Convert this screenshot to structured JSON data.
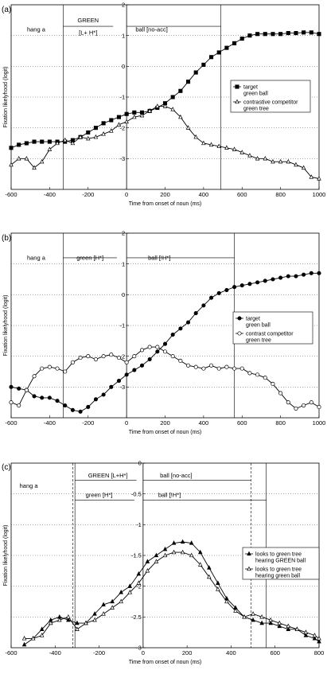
{
  "chart_data": [
    {
      "panel_label": "(a)",
      "type": "line",
      "xlabel": "Time from onset of noun (ms)",
      "ylabel": "Fixation likelyhood (logit)",
      "xlim": [
        -600,
        1000
      ],
      "ylim": [
        -4,
        2
      ],
      "xticks": [
        -600,
        -400,
        -200,
        0,
        200,
        400,
        600,
        800,
        1000
      ],
      "yticks": [
        2,
        1,
        0,
        -1,
        -2,
        -3
      ],
      "grid": "horizontal-dotted",
      "vlines": [
        {
          "x": -330,
          "style": "solid"
        },
        {
          "x": 490,
          "style": "solid"
        }
      ],
      "annotations": [
        {
          "text": "hang a",
          "x": -470,
          "y": 1.2
        },
        {
          "text": "GREEN",
          "x": -200,
          "y": 1.5
        },
        {
          "text": "[L+ H*]",
          "x": -200,
          "y": 1.1
        },
        {
          "text": "ball [no-acc]",
          "x": 130,
          "y": 1.2
        }
      ],
      "annotation_arrows": [
        {
          "x1": -330,
          "x2": -70,
          "y": 1.3
        },
        {
          "x1": 0,
          "x2": 490,
          "y": 1.3
        }
      ],
      "legend": {
        "placement": "right"
      },
      "series": [
        {
          "name": "target\ngreen ball",
          "marker": "square-filled",
          "x": [
            -600,
            -560,
            -520,
            -480,
            -440,
            -400,
            -360,
            -320,
            -280,
            -240,
            -200,
            -160,
            -120,
            -80,
            -40,
            0,
            40,
            80,
            120,
            160,
            200,
            240,
            280,
            320,
            360,
            400,
            440,
            480,
            520,
            560,
            600,
            640,
            680,
            720,
            760,
            800,
            840,
            880,
            920,
            960,
            1000
          ],
          "values": [
            -2.65,
            -2.55,
            -2.5,
            -2.45,
            -2.45,
            -2.45,
            -2.45,
            -2.45,
            -2.4,
            -2.3,
            -2.15,
            -2.0,
            -1.85,
            -1.75,
            -1.65,
            -1.55,
            -1.5,
            -1.5,
            -1.45,
            -1.35,
            -1.2,
            -1.0,
            -0.8,
            -0.5,
            -0.2,
            0.05,
            0.3,
            0.45,
            0.6,
            0.75,
            0.9,
            1.0,
            1.05,
            1.05,
            1.05,
            1.05,
            1.08,
            1.08,
            1.1,
            1.1,
            1.05
          ]
        },
        {
          "name": "contrastive competitor\ngreen tree",
          "marker": "triangle-open",
          "x": [
            -600,
            -560,
            -520,
            -480,
            -440,
            -400,
            -360,
            -320,
            -280,
            -240,
            -200,
            -160,
            -120,
            -80,
            -40,
            0,
            40,
            80,
            120,
            160,
            200,
            240,
            280,
            320,
            360,
            400,
            440,
            480,
            520,
            560,
            600,
            640,
            680,
            720,
            760,
            800,
            840,
            880,
            920,
            960,
            1000
          ],
          "values": [
            -3.2,
            -3.0,
            -3.0,
            -3.3,
            -3.1,
            -2.7,
            -2.5,
            -2.4,
            -2.5,
            -2.3,
            -2.35,
            -2.3,
            -2.2,
            -2.1,
            -1.9,
            -1.8,
            -1.65,
            -1.6,
            -1.45,
            -1.3,
            -1.3,
            -1.4,
            -1.65,
            -2.0,
            -2.3,
            -2.5,
            -2.55,
            -2.6,
            -2.65,
            -2.7,
            -2.8,
            -2.9,
            -3.0,
            -3.0,
            -3.1,
            -3.1,
            -3.1,
            -3.2,
            -3.3,
            -3.6,
            -3.65
          ]
        }
      ]
    },
    {
      "panel_label": "(b)",
      "type": "line",
      "xlabel": "Time from onset of noun (ms)",
      "ylabel": "Fixation likelyhood (logit)",
      "xlim": [
        -600,
        1000
      ],
      "ylim": [
        -4,
        2
      ],
      "xticks": [
        -600,
        -400,
        -200,
        0,
        200,
        400,
        600,
        800,
        1000
      ],
      "yticks": [
        2,
        1,
        0,
        -1,
        -2,
        -3
      ],
      "grid": "horizontal-dotted",
      "vlines": [
        {
          "x": -330,
          "style": "solid"
        },
        {
          "x": 560,
          "style": "solid"
        }
      ],
      "annotations": [
        {
          "text": "hang a",
          "x": -470,
          "y": 1.2
        },
        {
          "text": "green [H*]",
          "x": -190,
          "y": 1.2
        },
        {
          "text": "ball [!H*]",
          "x": 170,
          "y": 1.2
        }
      ],
      "annotation_arrows": [
        {
          "x1": -330,
          "x2": -50,
          "y": 1.2
        },
        {
          "x1": 0,
          "x2": 560,
          "y": 1.2
        }
      ],
      "legend": {
        "placement": "right"
      },
      "series": [
        {
          "name": "target\ngreen ball",
          "marker": "circle-filled",
          "x": [
            -600,
            -560,
            -520,
            -480,
            -440,
            -400,
            -360,
            -320,
            -280,
            -240,
            -200,
            -160,
            -120,
            -80,
            -40,
            0,
            40,
            80,
            120,
            160,
            200,
            240,
            280,
            320,
            360,
            400,
            440,
            480,
            520,
            560,
            600,
            640,
            680,
            720,
            760,
            800,
            840,
            880,
            920,
            960,
            1000
          ],
          "values": [
            -3.0,
            -3.05,
            -3.1,
            -3.3,
            -3.35,
            -3.35,
            -3.45,
            -3.6,
            -3.75,
            -3.8,
            -3.65,
            -3.4,
            -3.25,
            -3.0,
            -2.8,
            -2.6,
            -2.45,
            -2.3,
            -2.1,
            -1.85,
            -1.6,
            -1.3,
            -1.1,
            -0.9,
            -0.6,
            -0.35,
            -0.1,
            0.05,
            0.15,
            0.25,
            0.3,
            0.35,
            0.4,
            0.45,
            0.5,
            0.55,
            0.6,
            0.6,
            0.65,
            0.7,
            0.7
          ]
        },
        {
          "name": "contrast competitor\ngreen tree",
          "marker": "circle-open",
          "x": [
            -600,
            -560,
            -520,
            -480,
            -440,
            -400,
            -360,
            -320,
            -280,
            -240,
            -200,
            -160,
            -120,
            -80,
            -40,
            0,
            40,
            80,
            120,
            160,
            200,
            240,
            280,
            320,
            360,
            400,
            440,
            480,
            520,
            560,
            600,
            640,
            680,
            720,
            760,
            800,
            840,
            880,
            920,
            960,
            1000
          ],
          "values": [
            -3.5,
            -3.6,
            -3.1,
            -2.65,
            -2.4,
            -2.35,
            -2.4,
            -2.5,
            -2.2,
            -2.05,
            -2.0,
            -2.1,
            -2.0,
            -1.95,
            -2.05,
            -2.2,
            -2.0,
            -1.8,
            -1.7,
            -1.7,
            -1.85,
            -2.0,
            -2.15,
            -2.3,
            -2.35,
            -2.4,
            -2.3,
            -2.4,
            -2.35,
            -2.4,
            -2.4,
            -2.55,
            -2.6,
            -2.7,
            -2.9,
            -3.2,
            -3.5,
            -3.7,
            -3.6,
            -3.5,
            -3.65
          ]
        }
      ]
    },
    {
      "panel_label": "(c)",
      "type": "line",
      "xlabel": "Time from onset of noun (ms)",
      "ylabel": "Fixation likelyhood (logit)",
      "xlim": [
        -600,
        800
      ],
      "ylim": [
        -3,
        0
      ],
      "xticks": [
        -600,
        -400,
        -200,
        0,
        200,
        400,
        600,
        800
      ],
      "yticks": [
        0,
        -0.5,
        -1,
        -1.5,
        -2,
        -2.5,
        -3
      ],
      "grid": "horizontal-dotted",
      "vlines": [
        {
          "x": -320,
          "style": "dashed"
        },
        {
          "x": -310,
          "style": "solid"
        },
        {
          "x": 490,
          "style": "dashed"
        },
        {
          "x": 560,
          "style": "solid"
        }
      ],
      "annotations": [
        {
          "text": "hang a",
          "x": -520,
          "y": -0.37
        },
        {
          "text": "GREEN [L+H*]",
          "x": -160,
          "y": -0.2
        },
        {
          "text": "ball [no-acc]",
          "x": 150,
          "y": -0.2
        },
        {
          "text": "green [H*]",
          "x": -200,
          "y": -0.52
        },
        {
          "text": "ball [!H*]",
          "x": 120,
          "y": -0.52
        }
      ],
      "annotation_arrows": [
        {
          "x1": -310,
          "x2": -30,
          "y": -0.28
        },
        {
          "x1": 0,
          "x2": 490,
          "y": -0.28
        },
        {
          "x1": -310,
          "x2": -40,
          "y": -0.6
        },
        {
          "x1": 0,
          "x2": 560,
          "y": -0.6
        }
      ],
      "legend": {
        "placement": "right"
      },
      "series": [
        {
          "name": "looks to green tree\nhearing GREEN ball",
          "marker": "triangle-filled",
          "x": [
            -540,
            -500,
            -460,
            -420,
            -380,
            -340,
            -300,
            -260,
            -220,
            -180,
            -140,
            -100,
            -60,
            -20,
            20,
            60,
            100,
            140,
            180,
            220,
            260,
            300,
            340,
            380,
            420,
            460,
            500,
            540,
            580,
            620,
            660,
            700,
            740,
            780,
            800
          ],
          "values": [
            -2.95,
            -2.85,
            -2.7,
            -2.55,
            -2.5,
            -2.55,
            -2.6,
            -2.6,
            -2.45,
            -2.3,
            -2.25,
            -2.1,
            -2.0,
            -1.8,
            -1.6,
            -1.5,
            -1.4,
            -1.3,
            -1.28,
            -1.3,
            -1.45,
            -1.7,
            -1.95,
            -2.2,
            -2.35,
            -2.5,
            -2.55,
            -2.6,
            -2.6,
            -2.65,
            -2.7,
            -2.7,
            -2.8,
            -2.85,
            -2.9
          ]
        },
        {
          "name": "looks to green tree\nhearing green ball",
          "marker": "triangle-open",
          "x": [
            -540,
            -500,
            -460,
            -420,
            -380,
            -340,
            -300,
            -260,
            -220,
            -180,
            -140,
            -100,
            -60,
            -20,
            20,
            60,
            100,
            140,
            180,
            220,
            260,
            300,
            340,
            380,
            420,
            460,
            500,
            540,
            580,
            620,
            660,
            700,
            740,
            780,
            800
          ],
          "values": [
            -2.85,
            -2.85,
            -2.8,
            -2.6,
            -2.55,
            -2.5,
            -2.7,
            -2.6,
            -2.55,
            -2.45,
            -2.35,
            -2.25,
            -2.1,
            -1.95,
            -1.75,
            -1.6,
            -1.5,
            -1.45,
            -1.45,
            -1.5,
            -1.65,
            -1.85,
            -2.05,
            -2.25,
            -2.4,
            -2.5,
            -2.45,
            -2.5,
            -2.55,
            -2.6,
            -2.65,
            -2.7,
            -2.75,
            -2.8,
            -2.85
          ]
        }
      ]
    }
  ]
}
